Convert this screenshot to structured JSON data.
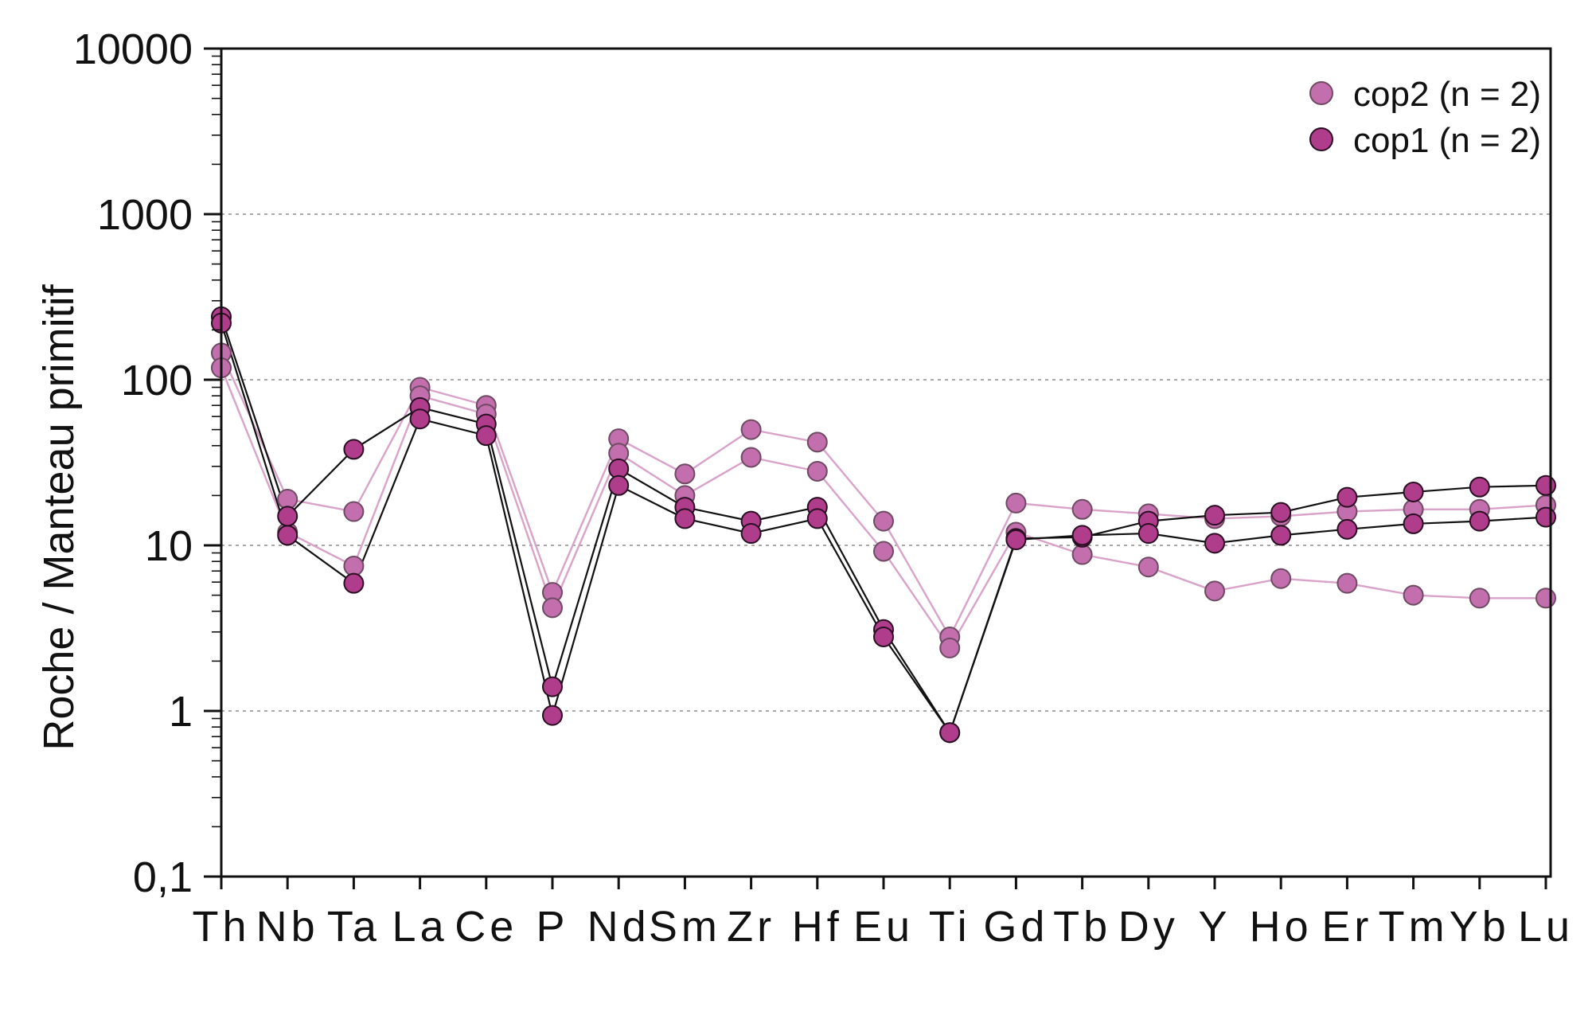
{
  "chart_data": {
    "type": "line",
    "xlabel": "",
    "ylabel": "Roche / Manteau primitif",
    "yscale": "log",
    "ylim": [
      0.1,
      10000
    ],
    "y_ticks": [
      0.1,
      1,
      10,
      100,
      1000,
      10000
    ],
    "y_tick_labels": [
      "0,1",
      "1",
      "10",
      "100",
      "1000",
      "10000"
    ],
    "grid": "horizontal dotted at decades 1, 10, 100, 1000",
    "legend_placement": "top-right",
    "categories": [
      "Th",
      "Nb",
      "Ta",
      "La",
      "Ce",
      "P",
      "Nd",
      "Sm",
      "Zr",
      "Hf",
      "Eu",
      "Ti",
      "Gd",
      "Tb",
      "Dy",
      "Y",
      "Ho",
      "Er",
      "Tm",
      "Yb",
      "Lu"
    ],
    "groups": [
      {
        "name": "cop2 (n = 2)",
        "marker_color": "#C36FAD",
        "line_color": "#D9A2C9",
        "samples": [
          {
            "values": [
              145,
              19,
              16,
              90,
              70,
              5.2,
              44,
              27,
              50,
              42,
              14,
              2.8,
              18,
              16.5,
              15.5,
              14.5,
              15,
              16,
              16.5,
              16.5,
              17.5
            ]
          },
          {
            "values": [
              118,
              12,
              7.5,
              80,
              62,
              4.2,
              36,
              20,
              34,
              28,
              9.2,
              2.4,
              12,
              8.8,
              7.4,
              5.3,
              6.3,
              5.9,
              5.0,
              4.8,
              4.8
            ]
          }
        ]
      },
      {
        "name": "cop1 (n = 2)",
        "marker_color": "#B03C8C",
        "line_color": "#111111",
        "samples": [
          {
            "values": [
              240,
              15,
              38,
              68,
              54,
              1.4,
              29,
              17,
              14,
              17,
              3.1,
              0.74,
              11,
              11.2,
              14,
              15.2,
              15.8,
              19.5,
              21,
              22.5,
              23
            ]
          },
          {
            "values": [
              220,
              11.5,
              5.9,
              58,
              46,
              0.94,
              23,
              14.5,
              11.8,
              14.5,
              2.8,
              0.74,
              10.8,
              11.5,
              11.8,
              10.3,
              11.5,
              12.5,
              13.5,
              14,
              14.8
            ]
          }
        ]
      }
    ]
  }
}
